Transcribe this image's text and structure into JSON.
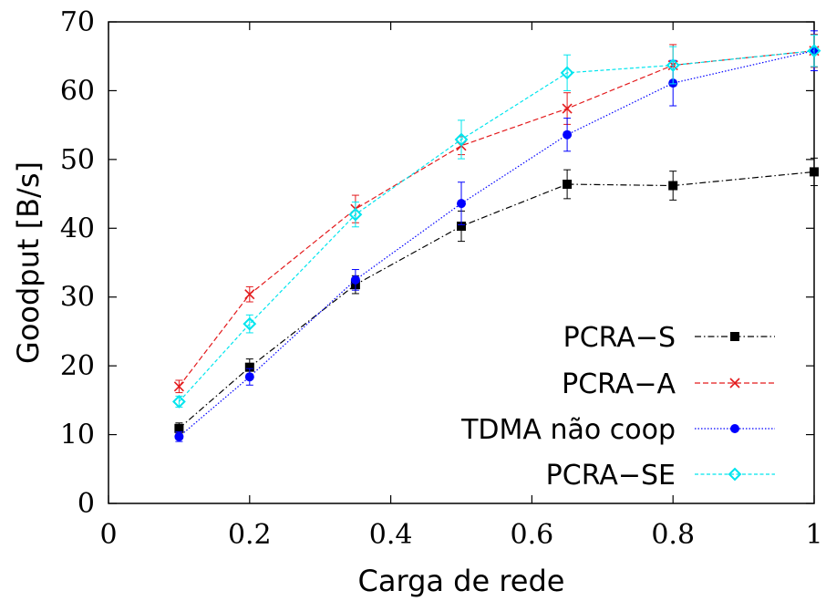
{
  "chart_data": {
    "type": "line",
    "xlabel": "Carga de rede",
    "ylabel": "Goodput [B/s]",
    "xlim": [
      0,
      1
    ],
    "ylim": [
      0,
      70
    ],
    "xticks": [
      "0",
      "0.2",
      "0.4",
      "0.6",
      "0.8",
      "1"
    ],
    "xtick_values": [
      0,
      0.2,
      0.4,
      0.6,
      0.8,
      1
    ],
    "yticks": [
      "0",
      "10",
      "20",
      "30",
      "40",
      "50",
      "60",
      "70"
    ],
    "ytick_values": [
      0,
      10,
      20,
      30,
      40,
      50,
      60,
      70
    ],
    "grid": false,
    "legend_position": "bottom-right",
    "x": [
      0.1,
      0.2,
      0.35,
      0.5,
      0.65,
      0.8,
      1.0
    ],
    "series": [
      {
        "name": "PCRA−S",
        "color": "#000000",
        "marker": "square",
        "dash": "dash-dot",
        "values": [
          10.9,
          19.8,
          31.8,
          40.3,
          46.4,
          46.2,
          48.2
        ],
        "errors": [
          0.8,
          1.2,
          1.3,
          2.2,
          2.1,
          2.1,
          2.0
        ]
      },
      {
        "name": "PCRA−A",
        "color": "#e31a1c",
        "marker": "x",
        "dash": "dashed",
        "values": [
          17.0,
          30.4,
          42.8,
          52.0,
          57.4,
          63.7,
          65.8
        ],
        "errors": [
          0.9,
          1.1,
          2.0,
          1.3,
          2.3,
          3.0,
          2.4
        ]
      },
      {
        "name": "TDMA não coop",
        "color": "#0000ff",
        "marker": "circle",
        "dash": "dotted",
        "values": [
          9.7,
          18.4,
          32.5,
          43.6,
          53.6,
          61.1,
          65.8
        ],
        "errors": [
          0.7,
          1.2,
          1.5,
          3.1,
          2.4,
          3.3,
          2.9
        ]
      },
      {
        "name": "PCRA−SE",
        "color": "#00e5ee",
        "marker": "diamond",
        "dash": "short-dash",
        "values": [
          14.8,
          26.1,
          42.0,
          52.9,
          62.6,
          63.7,
          65.8
        ],
        "errors": [
          0.8,
          1.3,
          1.8,
          2.8,
          2.6,
          2.7,
          2.3
        ]
      }
    ]
  }
}
